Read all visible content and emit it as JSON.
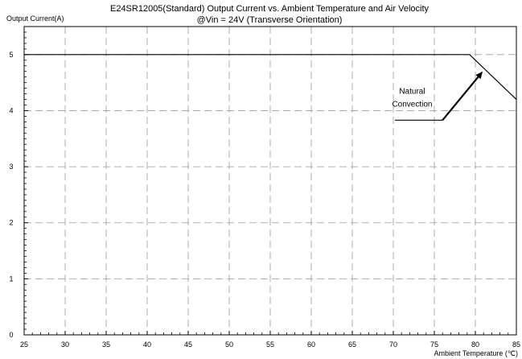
{
  "chart_data": {
    "type": "line",
    "title_line1": "E24SR12005(Standard)  Output Current vs. Ambient Temperature and Air Velocity",
    "title_line2": "@Vin = 24V (Transverse Orientation)",
    "ylabel": "Output Current(A)",
    "xlabel": "Ambient Temperature (℃)",
    "xlim": [
      25,
      85
    ],
    "ylim": [
      0,
      5.5
    ],
    "x_ticks": [
      25,
      30,
      35,
      40,
      45,
      50,
      55,
      60,
      65,
      70,
      75,
      80,
      85
    ],
    "y_ticks": [
      0,
      1,
      2,
      3,
      4,
      5
    ],
    "grid": true,
    "series": [
      {
        "x": [
          25,
          79.3,
          85
        ],
        "y": [
          5,
          5,
          4.2
        ]
      }
    ],
    "annotation": {
      "label_line1": "Natural",
      "label_line2": "Convection",
      "pointer_x": [
        70.2,
        76.0
      ],
      "pointer_y": [
        3.83,
        3.83
      ],
      "arrow_from": [
        76.0,
        3.83
      ],
      "arrow_to": [
        80.9,
        4.7
      ]
    }
  }
}
